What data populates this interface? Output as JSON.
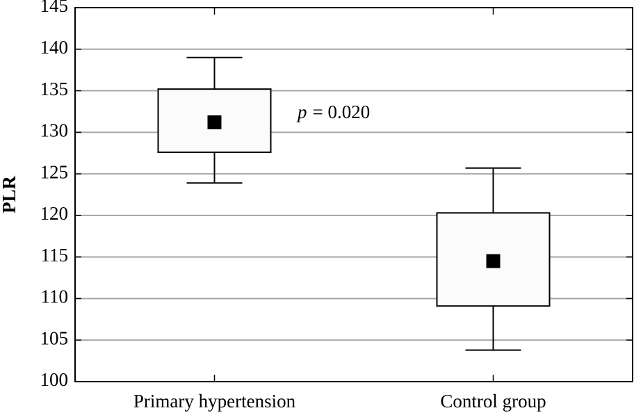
{
  "chart_data": {
    "type": "box",
    "y_label": "PLR",
    "categories": [
      "Primary hypertension",
      "Control group"
    ],
    "high": [
      139.0,
      125.7
    ],
    "q3": [
      135.2,
      120.3
    ],
    "mean": [
      131.2,
      114.5
    ],
    "q1": [
      127.6,
      109.1
    ],
    "low": [
      123.9,
      103.8
    ],
    "annotation": {
      "variable": "p",
      "text": "= 0.020"
    },
    "ylim": [
      100,
      145
    ],
    "yticks": [
      100,
      105,
      110,
      115,
      120,
      125,
      130,
      135,
      140,
      145
    ],
    "grid": true,
    "box_color": "#fbfbfb",
    "marker_color": "#000000",
    "grid_color": "#a6a6a6"
  }
}
